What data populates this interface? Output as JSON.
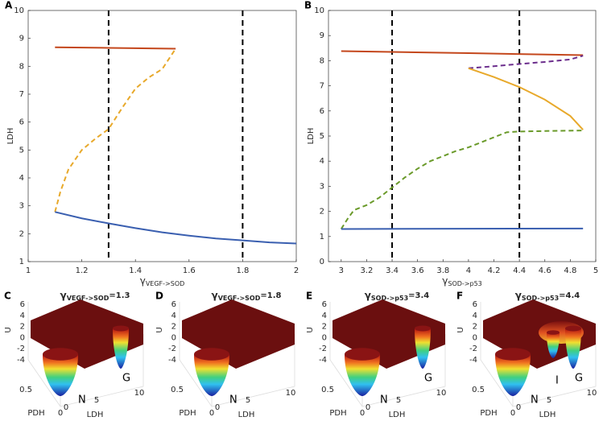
{
  "chart_data": [
    {
      "type": "line",
      "label": "A",
      "xlabel": {
        "symbol": "γ",
        "subscript": "VEGF->SOD"
      },
      "ylabel": "LDH",
      "xlim": [
        1,
        2
      ],
      "xticks": [
        1,
        1.2,
        1.4,
        1.6,
        1.8,
        2
      ],
      "ylim": [
        1,
        10
      ],
      "yticks": [
        1,
        2,
        3,
        4,
        5,
        6,
        7,
        8,
        9,
        10
      ],
      "vlines": [
        1.3,
        1.8
      ],
      "series": [
        {
          "color": "#c4471c",
          "dashed": false,
          "x": [
            1.1,
            1.3,
            1.55
          ],
          "values": [
            8.68,
            8.66,
            8.63
          ]
        },
        {
          "color": "#e8a92b",
          "dashed": true,
          "x": [
            1.1,
            1.12,
            1.15,
            1.2,
            1.25,
            1.3,
            1.35,
            1.4,
            1.45,
            1.5,
            1.55
          ],
          "values": [
            2.78,
            3.5,
            4.3,
            5.0,
            5.4,
            5.75,
            6.5,
            7.2,
            7.6,
            7.9,
            8.63
          ]
        },
        {
          "color": "#3a5fb0",
          "dashed": false,
          "x": [
            1.1,
            1.2,
            1.3,
            1.4,
            1.5,
            1.6,
            1.7,
            1.8,
            1.9,
            2.0
          ],
          "values": [
            2.78,
            2.55,
            2.37,
            2.2,
            2.05,
            1.93,
            1.83,
            1.76,
            1.69,
            1.65
          ]
        }
      ]
    },
    {
      "type": "line",
      "label": "B",
      "xlabel": {
        "symbol": "γ",
        "subscript": "SOD->p53"
      },
      "ylabel": "LDH",
      "xlim": [
        2.9,
        5
      ],
      "xticks": [
        3,
        3.2,
        3.4,
        3.6,
        3.8,
        4,
        4.2,
        4.4,
        4.6,
        4.8,
        5
      ],
      "ylim": [
        0,
        10
      ],
      "yticks": [
        0,
        1,
        2,
        3,
        4,
        5,
        6,
        7,
        8,
        9,
        10
      ],
      "vlines": [
        3.4,
        4.4
      ],
      "series": [
        {
          "color": "#c4471c",
          "dashed": false,
          "x": [
            3,
            4,
            4.9
          ],
          "values": [
            8.38,
            8.3,
            8.22
          ]
        },
        {
          "color": "#6b2d8c",
          "dashed": true,
          "x": [
            4,
            4.2,
            4.4,
            4.6,
            4.8,
            4.9
          ],
          "values": [
            7.7,
            7.78,
            7.87,
            7.95,
            8.05,
            8.2
          ]
        },
        {
          "color": "#e8a92b",
          "dashed": false,
          "x": [
            4,
            4.2,
            4.4,
            4.6,
            4.8,
            4.9
          ],
          "values": [
            7.7,
            7.35,
            6.95,
            6.45,
            5.8,
            5.25
          ]
        },
        {
          "color": "#6a9a2a",
          "dashed": true,
          "x": [
            3,
            3.05,
            3.1,
            3.2,
            3.3,
            3.4,
            3.5,
            3.6,
            3.7,
            3.8,
            3.9,
            4.0,
            4.1,
            4.2,
            4.3,
            4.4,
            4.6,
            4.9
          ],
          "values": [
            1.3,
            1.7,
            2.05,
            2.25,
            2.55,
            2.95,
            3.35,
            3.7,
            4.0,
            4.2,
            4.4,
            4.55,
            4.75,
            4.95,
            5.15,
            5.18,
            5.2,
            5.22
          ]
        },
        {
          "color": "#3a5fb0",
          "dashed": false,
          "x": [
            3,
            4.9
          ],
          "values": [
            1.3,
            1.32
          ]
        }
      ]
    }
  ],
  "landscape_axes": {
    "zlabel": "U",
    "ylabel": "PDH",
    "xlabel": "LDH",
    "zticks": [
      "6",
      "4",
      "2",
      "0",
      "-2",
      "-4"
    ],
    "yticks": [
      "0.5",
      "0"
    ],
    "xticks": [
      "0",
      "5",
      "10"
    ]
  },
  "landscapes": [
    {
      "label": "C",
      "title": {
        "symbol": "γ",
        "subscript": "VEGF->SOD",
        "suffix": "=1.3"
      },
      "wells": [
        "N",
        "G"
      ]
    },
    {
      "label": "D",
      "title": {
        "symbol": "γ",
        "subscript": "VEGF->SOD",
        "suffix": "=1.8"
      },
      "wells": [
        "N"
      ]
    },
    {
      "label": "E",
      "title": {
        "symbol": "γ",
        "subscript": "SOD->p53",
        "suffix": "=3.4"
      },
      "wells": [
        "N",
        "G"
      ]
    },
    {
      "label": "F",
      "title": {
        "symbol": "γ",
        "subscript": "SOD->p53",
        "suffix": "=4.4"
      },
      "wells": [
        "N",
        "I",
        "G"
      ]
    }
  ]
}
